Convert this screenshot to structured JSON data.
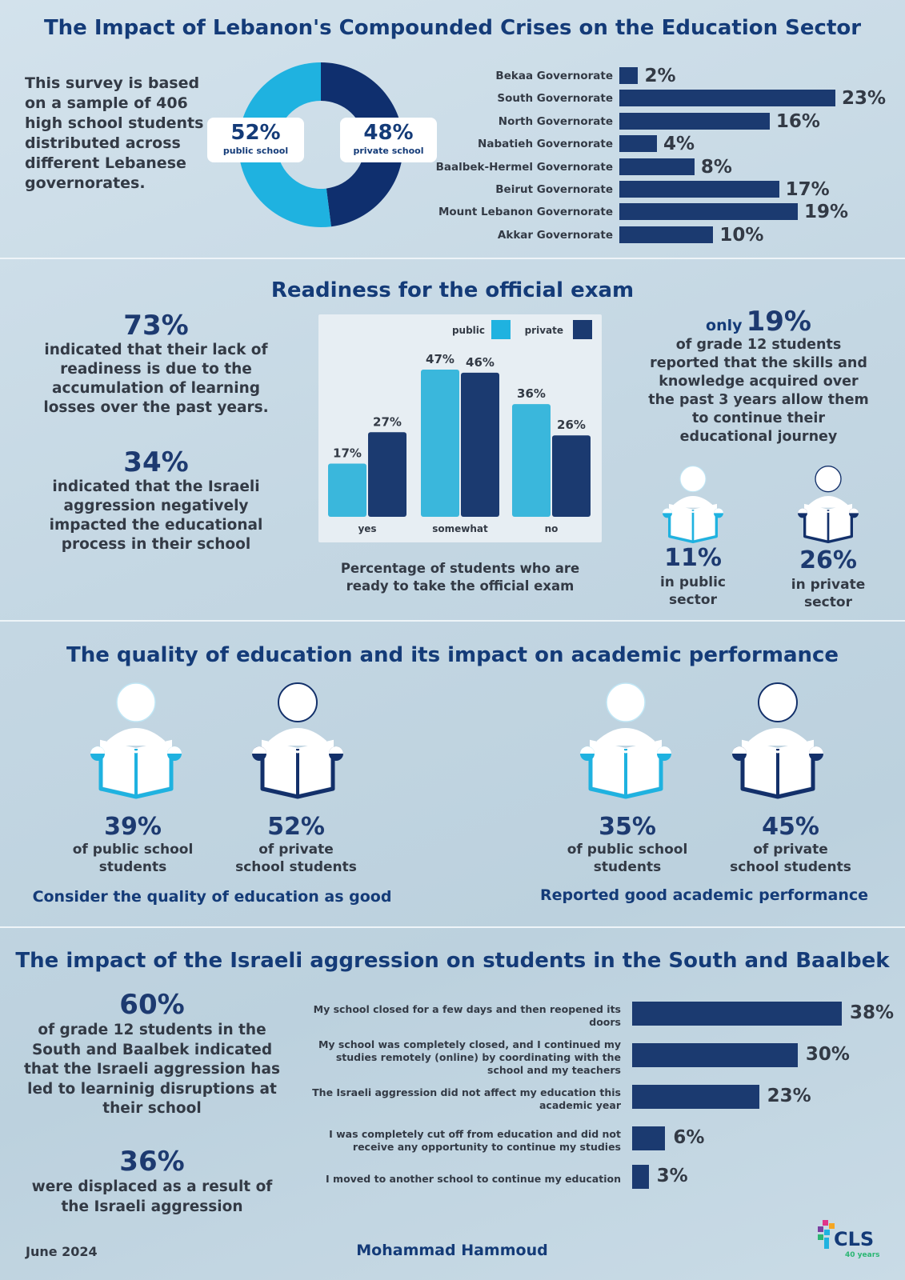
{
  "main_title": "The Impact of Lebanon's Compounded Crises on the Education Sector",
  "intro_text": "This survey is based on a sample of 406 high school students distributed across different Lebanese governorates.",
  "colors": {
    "navy": "#1b3a70",
    "light_blue": "#1fb2e0",
    "title": "#143b78"
  },
  "school_split": {
    "public": {
      "value": "52%",
      "label": "public school",
      "fraction": 0.52
    },
    "private": {
      "value": "48%",
      "label": "private school",
      "fraction": 0.48
    }
  },
  "governorates": [
    {
      "name": "Bekaa Governorate",
      "value": 2,
      "label": "2%"
    },
    {
      "name": "South Governorate",
      "value": 23,
      "label": "23%"
    },
    {
      "name": "North Governorate",
      "value": 16,
      "label": "16%"
    },
    {
      "name": "Nabatieh Governorate",
      "value": 4,
      "label": "4%"
    },
    {
      "name": "Baalbek-Hermel Governorate",
      "value": 8,
      "label": "8%"
    },
    {
      "name": "Beirut Governorate",
      "value": 17,
      "label": "17%"
    },
    {
      "name": "Mount Lebanon Governorate",
      "value": 19,
      "label": "19%"
    },
    {
      "name": "Akkar Governorate",
      "value": 10,
      "label": "10%"
    }
  ],
  "readiness": {
    "title": "Readiness for the official exam",
    "stat1_value": "73%",
    "stat1_text": "indicated that their lack of readiness is due to the accumulation of learning losses over the past years.",
    "stat2_value": "34%",
    "stat2_text": "indicated that the Israeli aggression negatively impacted the educational process in their school",
    "chart_caption": "Percentage of students who are ready to take the official exam",
    "grade12_prefix": "only",
    "grade12_value": "19%",
    "grade12_text": "of grade 12 students reported that the skills and knowledge acquired over the past 3 years allow them to continue their educational journey",
    "public_value": "11%",
    "public_label": "in public sector",
    "private_value": "26%",
    "private_label": "in private sector"
  },
  "chart_data": [
    {
      "type": "pie",
      "categories": [
        "public school",
        "private school"
      ],
      "values": [
        52,
        48
      ]
    },
    {
      "type": "bar",
      "orientation": "horizontal",
      "categories": [
        "Bekaa Governorate",
        "South Governorate",
        "North Governorate",
        "Nabatieh Governorate",
        "Baalbek-Hermel Governorate",
        "Beirut Governorate",
        "Mount Lebanon Governorate",
        "Akkar Governorate"
      ],
      "values": [
        2,
        23,
        16,
        4,
        8,
        17,
        19,
        10
      ]
    },
    {
      "type": "bar",
      "categories": [
        "yes",
        "somewhat",
        "no"
      ],
      "series": [
        {
          "name": "public",
          "values": [
            17,
            47,
            36
          ],
          "labels": [
            "17%",
            "47%",
            "36%"
          ]
        },
        {
          "name": "private",
          "values": [
            27,
            46,
            26
          ],
          "labels": [
            "27%",
            "46%",
            "26%"
          ]
        }
      ],
      "legend": "top-right",
      "ylim": [
        0,
        50
      ],
      "title": "Percentage of students who are ready to take the official exam"
    },
    {
      "type": "bar",
      "orientation": "horizontal",
      "categories": [
        "My school closed for a few days and then reopened its doors",
        "My school was completely closed, and I continued my studies remotely (online) by coordinating with the school and my teachers",
        "The Israeli aggression did not affect my education this academic year",
        "I was completely cut off from education and did not receive any opportunity to continue my studies",
        "I moved to another school to continue my education"
      ],
      "values": [
        38,
        30,
        23,
        6,
        3
      ]
    }
  ],
  "quality": {
    "title": "The quality of education and its impact on academic performance",
    "q_public_value": "39%",
    "q_public_label": "of public school students",
    "q_private_value": "52%",
    "q_private_label": "of private school students",
    "q_caption": "Consider the quality of education as good",
    "p_public_value": "35%",
    "p_public_label": "of public school students",
    "p_private_value": "45%",
    "p_private_label": "of private school students",
    "p_caption": "Reported good academic performance"
  },
  "aggression": {
    "title": "The impact of the Israeli aggression on students in the South and Baalbek",
    "stat1_value": "60%",
    "stat1_text": "of grade 12 students in the South and Baalbek indicated that the Israeli aggression has led to learninig disruptions at their school",
    "stat2_value": "36%",
    "stat2_text": "were displaced as a result of the Israeli aggression",
    "items": [
      {
        "text": "My school closed for a few days and then reopened its doors",
        "value": 38,
        "label": "38%"
      },
      {
        "text": "My school was completely closed, and I continued my studies remotely (online) by coordinating with the school and my teachers",
        "value": 30,
        "label": "30%"
      },
      {
        "text": "The Israeli aggression did not affect my education this academic year",
        "value": 23,
        "label": "23%"
      },
      {
        "text": "I was completely cut off from education and did not receive any opportunity to continue my studies",
        "value": 6,
        "label": "6%"
      },
      {
        "text": "I moved to another school to continue my education",
        "value": 3,
        "label": "3%"
      }
    ]
  },
  "footer": {
    "date": "June 2024",
    "author": "Mohammad Hammoud",
    "logo_text": "CLS",
    "logo_sub": "40 years"
  }
}
